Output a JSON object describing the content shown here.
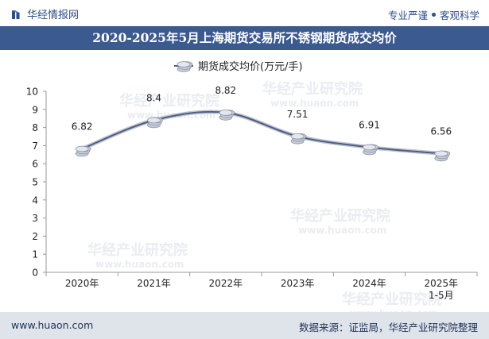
{
  "header": {
    "brand": "华经情报网",
    "tag_left": "专业严谨",
    "tag_right": "客观科学"
  },
  "colors": {
    "brand": "#2d4f86",
    "title_bg": "#3b5a8f",
    "line": "#4f5f85",
    "footer_bg": "#dfe3ea"
  },
  "chart_data": {
    "type": "line",
    "title": "2020-2025年5月上海期货交易所不锈钢期货成交均价",
    "categories": [
      "2020年",
      "2021年",
      "2022年",
      "2023年",
      "2024年",
      "2025年\n1-5月"
    ],
    "series": [
      {
        "name": "期货成交均价(万元/手)",
        "values": [
          6.82,
          8.4,
          8.82,
          7.51,
          6.91,
          6.56
        ]
      }
    ],
    "data_labels": [
      "6.82",
      "8.4",
      "8.82",
      "7.51",
      "6.91",
      "6.56"
    ],
    "ylim": [
      0,
      10
    ],
    "yticks": [
      0,
      1,
      2,
      3,
      4,
      5,
      6,
      7,
      8,
      9,
      10
    ],
    "xlabel": "",
    "ylabel": "",
    "legend_position": "top-center",
    "watermark_cn": "华经产业研究院",
    "watermark_en": "www.huaon.com"
  },
  "footer": {
    "website": "www.huaon.com",
    "source": "数据来源：证监局，华经产业研究院整理"
  }
}
